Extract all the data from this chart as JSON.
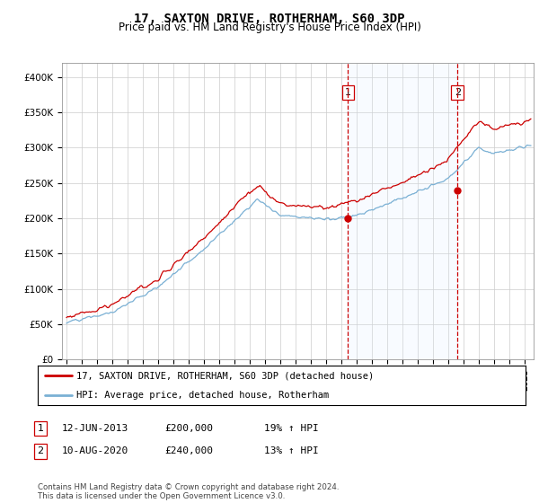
{
  "title": "17, SAXTON DRIVE, ROTHERHAM, S60 3DP",
  "subtitle": "Price paid vs. HM Land Registry's House Price Index (HPI)",
  "ylim": [
    0,
    420000
  ],
  "yticks": [
    0,
    50000,
    100000,
    150000,
    200000,
    250000,
    300000,
    350000,
    400000
  ],
  "ytick_labels": [
    "£0",
    "£50K",
    "£100K",
    "£150K",
    "£200K",
    "£250K",
    "£300K",
    "£350K",
    "£400K"
  ],
  "sale1_date": "12-JUN-2013",
  "sale1_price": 200000,
  "sale1_pct": "19% ↑ HPI",
  "sale1_x": 2013.44,
  "sale2_date": "10-AUG-2020",
  "sale2_price": 240000,
  "sale2_pct": "13% ↑ HPI",
  "sale2_x": 2020.61,
  "hpi_line_color": "#7ab0d4",
  "price_line_color": "#cc0000",
  "vline_color": "#cc0000",
  "span_color": "#ddeeff",
  "background_color": "#ffffff",
  "plot_bg_color": "#ffffff",
  "legend_label1": "17, SAXTON DRIVE, ROTHERHAM, S60 3DP (detached house)",
  "legend_label2": "HPI: Average price, detached house, Rotherham",
  "footnote": "Contains HM Land Registry data © Crown copyright and database right 2024.\nThis data is licensed under the Open Government Licence v3.0.",
  "marker1_label": "1",
  "marker2_label": "2",
  "xstart": 1995,
  "xend": 2025,
  "noise_scale_hpi": 1800,
  "noise_scale_price": 2200
}
